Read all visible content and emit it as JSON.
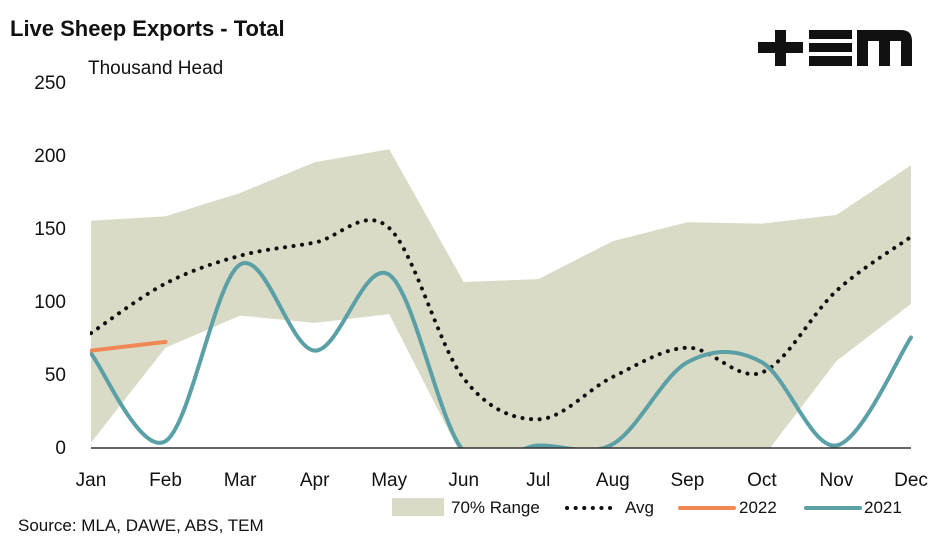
{
  "title": "Live Sheep Exports - Total",
  "source": "Source: MLA, DAWE, ABS, TEM",
  "logo_text": "+≡M",
  "colors": {
    "range": "#dadbc6",
    "avg": "#111111",
    "y2022": "#f08755",
    "y2021": "#5aa0a6",
    "axis": "#333333"
  },
  "chart_data": {
    "type": "line",
    "ylabel": "Thousand Head",
    "ylim": [
      0,
      250
    ],
    "yticks": [
      0,
      50,
      100,
      150,
      200,
      250
    ],
    "categories": [
      "Jan",
      "Feb",
      "Mar",
      "Apr",
      "May",
      "Jun",
      "Jul",
      "Aug",
      "Sep",
      "Oct",
      "Nov",
      "Dec"
    ],
    "grid": false,
    "legend_position": "bottom",
    "range": {
      "name": "70% Range",
      "upper": [
        155,
        158,
        174,
        195,
        204,
        113,
        115,
        141,
        154,
        153,
        159,
        193
      ],
      "lower": [
        3,
        68,
        90,
        85,
        91,
        -9,
        -12,
        -12,
        -10,
        -8,
        59,
        98
      ]
    },
    "series": [
      {
        "name": "Avg",
        "style": "dotted",
        "values": [
          78,
          112,
          131,
          140,
          150,
          47,
          19,
          48,
          68,
          51,
          107,
          144
        ]
      },
      {
        "name": "2022",
        "style": "solid",
        "values": [
          66,
          72,
          null,
          null,
          null,
          null,
          null,
          null,
          null,
          null,
          null,
          null
        ]
      },
      {
        "name": "2021",
        "style": "solid",
        "values": [
          64,
          4,
          125,
          66,
          118,
          -3,
          1,
          2,
          58,
          58,
          1,
          75
        ]
      }
    ]
  }
}
